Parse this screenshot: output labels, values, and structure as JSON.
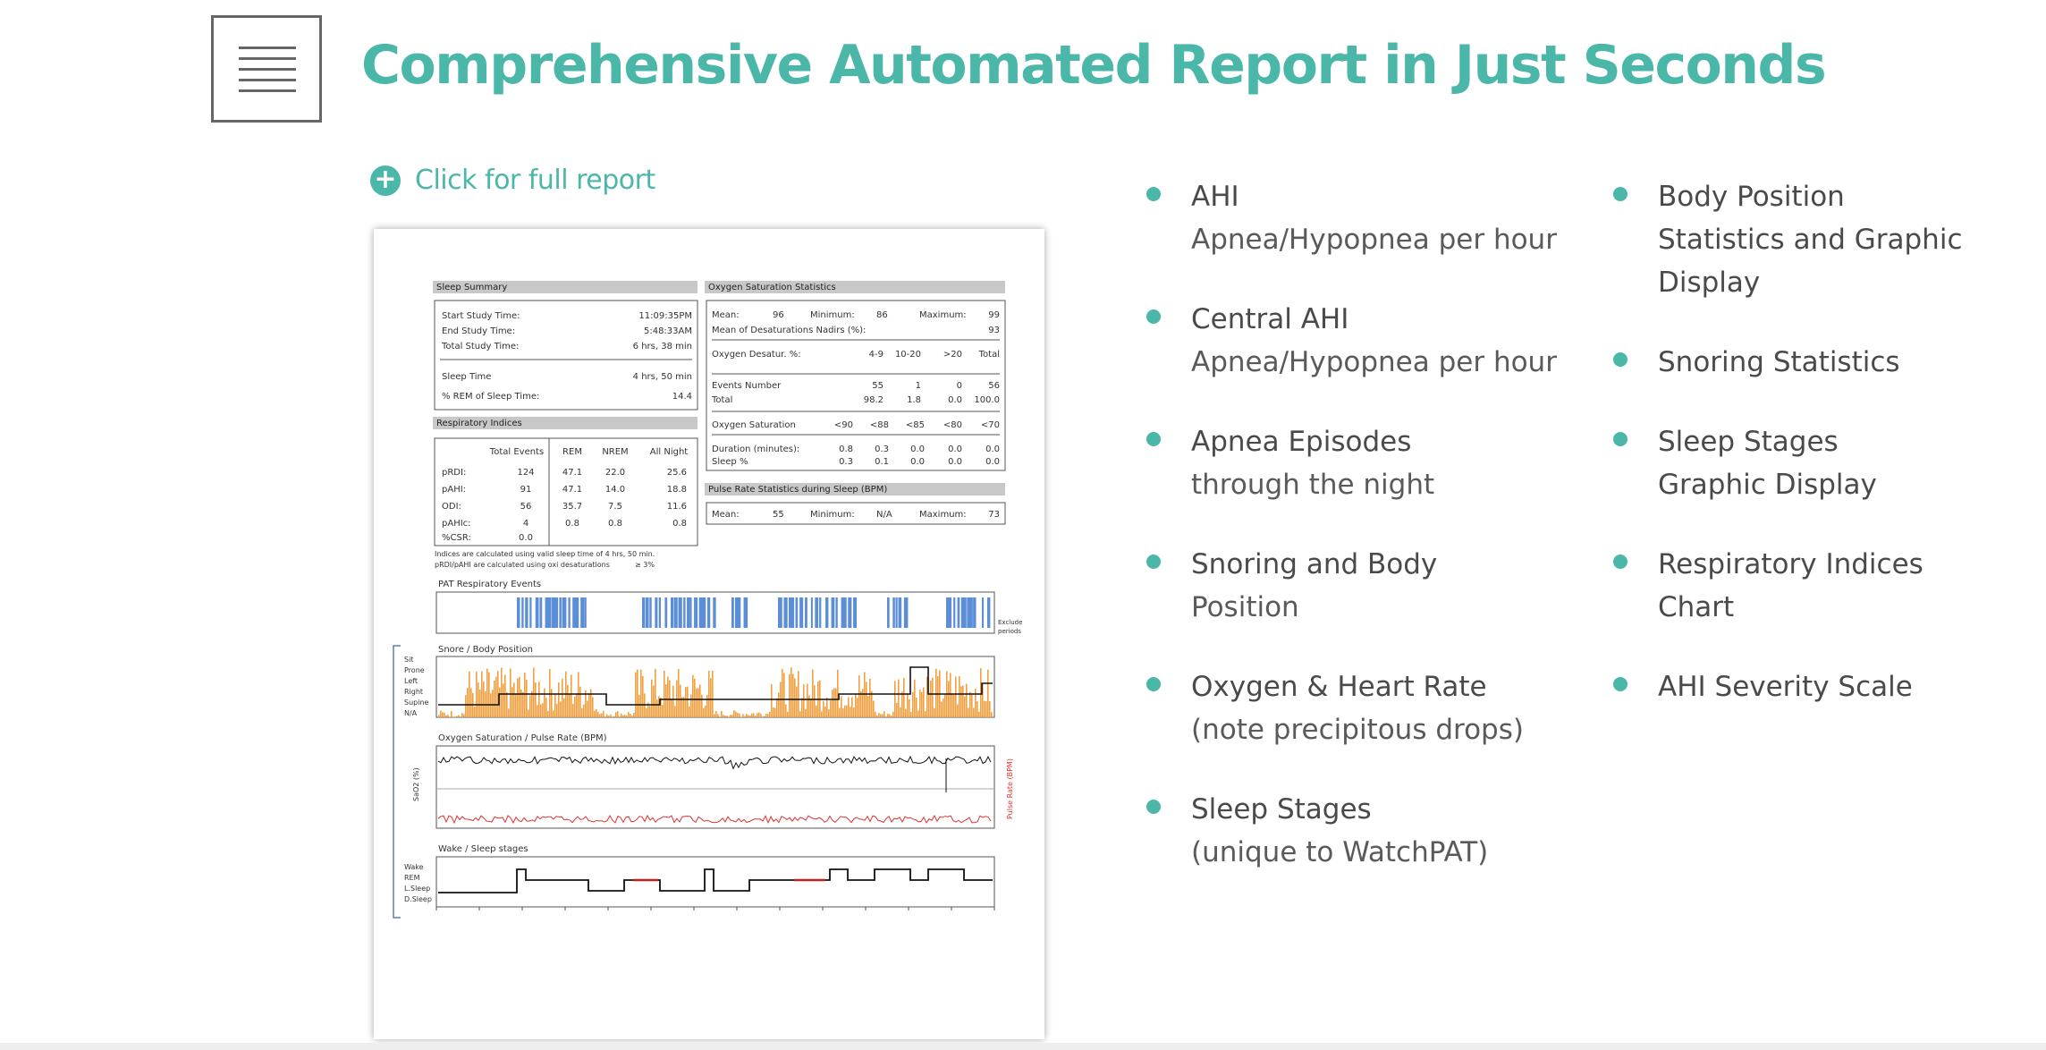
{
  "page": {
    "title": "Comprehensive Automated Report in Just Seconds",
    "report_link": "Click for full report",
    "accent": "#4bb7a8"
  },
  "features_left": [
    {
      "title": "AHI",
      "subtitle": "Apnea/Hypopnea per hour"
    },
    {
      "title": "Central AHI",
      "subtitle": "Apnea/Hypopnea per hour"
    },
    {
      "title": "Apnea Episodes",
      "subtitle": "through the night"
    },
    {
      "title": "Snoring and Body",
      "subtitle": "Position"
    },
    {
      "title": "Oxygen & Heart Rate",
      "subtitle": "(note precipitous drops)"
    },
    {
      "title": "Sleep Stages",
      "subtitle": "(unique to WatchPAT)"
    }
  ],
  "features_right": [
    {
      "title": "Body Position",
      "subtitle": "Statistics and Graphic",
      "extra": "Display"
    },
    {
      "title": "Snoring Statistics"
    },
    {
      "title": "Sleep Stages",
      "subtitle": "Graphic Display"
    },
    {
      "title": "Respiratory Indices",
      "subtitle": "Chart"
    },
    {
      "title": "AHI Severity Scale"
    }
  ],
  "report": {
    "sleep_summary": {
      "header": "Sleep Summary",
      "rows": [
        {
          "label": "Start Study Time:",
          "value": "11:09:35PM"
        },
        {
          "label": "End Study Time:",
          "value": "5:48:33AM"
        },
        {
          "label": "Total Study Time:",
          "value": "6 hrs, 38 min"
        },
        {
          "label": "Sleep Time",
          "value": "4 hrs, 50 min"
        },
        {
          "label": "% REM of Sleep Time:",
          "value": "14.4"
        }
      ]
    },
    "respiratory": {
      "header": "Respiratory Indices",
      "columns": [
        "",
        "Total Events",
        "REM",
        "NREM",
        "All Night"
      ],
      "rows": [
        [
          "pRDI:",
          "124",
          "47.1",
          "22.0",
          "25.6"
        ],
        [
          "pAHI:",
          "91",
          "47.1",
          "14.0",
          "18.8"
        ],
        [
          "ODI:",
          "56",
          "35.7",
          "7.5",
          "11.6"
        ],
        [
          "pAHIc:",
          "4",
          "0.8",
          "0.8",
          "0.8"
        ],
        [
          "%CSR:",
          "0.0",
          "",
          "",
          ""
        ]
      ],
      "note1": "Indices are calculated using valid sleep time of 4 hrs, 50 min.",
      "note2": "pRDI/pAHI are calculated using oxi desaturations",
      "note2b": "≥ 3%"
    },
    "oxygen": {
      "header": "Oxygen Saturation Statistics",
      "mean_label": "Mean:",
      "mean": "96",
      "min_label": "Minimum:",
      "min": "86",
      "max_label": "Maximum:",
      "max": "99",
      "nadir_label": "Mean of Desaturations Nadirs (%):",
      "nadir": "93",
      "desat_label": "Oxygen Desatur. %:",
      "desat_cols": [
        "4-9",
        "10-20",
        ">20",
        "Total"
      ],
      "events_label": "Events Number",
      "events": [
        "55",
        "1",
        "0",
        "56"
      ],
      "total_label": "Total",
      "total": [
        "98.2",
        "1.8",
        "0.0",
        "100.0"
      ],
      "sat_label": "Oxygen Saturation",
      "sat_cols": [
        "<90",
        "<88",
        "<85",
        "<80",
        "<70"
      ],
      "dur_label": "Duration (minutes):",
      "dur": [
        "0.8",
        "0.3",
        "0.0",
        "0.0",
        "0.0"
      ],
      "sleep_label": "Sleep %",
      "sleep": [
        "0.3",
        "0.1",
        "0.0",
        "0.0",
        "0.0"
      ]
    },
    "pulse": {
      "header": "Pulse Rate Statistics during Sleep (BPM)",
      "mean_label": "Mean:",
      "mean": "55",
      "min_label": "Minimum:",
      "min": "N/A",
      "max_label": "Maximum:",
      "max": "73"
    },
    "charts": {
      "pat_title": "PAT Respiratory Events",
      "pat_side": "Exclude",
      "pat_side2": "periods",
      "snore_title": "Snore / Body Position",
      "snore_axis": [
        "Sit",
        "Prone",
        "Left",
        "Right",
        "Supine",
        "N/A"
      ],
      "spo2_title": "Oxygen Saturation / Pulse Rate (BPM)",
      "spo2_axis": "SaO2 (%)",
      "pulse_axis": "Pulse Rate (BPM)",
      "sleep_title": "Wake / Sleep stages",
      "sleep_axis": [
        "Wake",
        "REM",
        "L.Sleep",
        "D.Sleep"
      ]
    }
  }
}
